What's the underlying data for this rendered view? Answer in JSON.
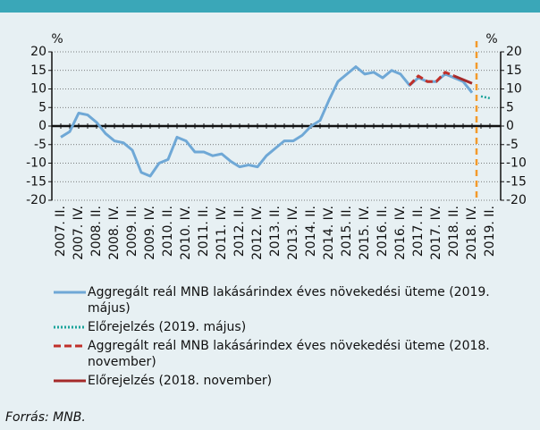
{
  "chart_data": {
    "type": "line",
    "y_unit": "%",
    "y2_unit": "%",
    "categories": [
      "2007. II.",
      null,
      "2007. IV.",
      null,
      "2008. II.",
      null,
      "2008. IV.",
      null,
      "2009. II.",
      null,
      "2009. IV.",
      null,
      "2010. II.",
      null,
      "2010. IV.",
      null,
      "2011. II.",
      null,
      "2011. IV.",
      null,
      "2012. II.",
      null,
      "2012. IV.",
      null,
      "2013. II.",
      null,
      "2013. IV.",
      null,
      "2014. II.",
      null,
      "2014. IV.",
      null,
      "2015. II.",
      null,
      "2015. IV.",
      null,
      "2016. II.",
      null,
      "2016. IV.",
      null,
      "2017. II.",
      null,
      "2017. IV.",
      null,
      "2018. II.",
      null,
      "2018. IV.",
      null,
      "2019. II."
    ],
    "series": [
      {
        "name": "Aggregált reál MNB lakásárindex éves növekedési üteme (2019. május)",
        "color": "#6fa8d6",
        "dash": "solid",
        "values": [
          -3,
          -1.5,
          3.5,
          3,
          1,
          -2,
          -4,
          -4.5,
          -6.5,
          -12.5,
          -13.5,
          -10,
          -9,
          -3,
          -4,
          -7,
          -7,
          -8,
          -7.5,
          -9.5,
          -11,
          -10.5,
          -11,
          -8,
          -6,
          -4,
          -4,
          -2.5,
          0,
          1.5,
          7,
          12,
          14,
          16,
          14,
          14.5,
          13,
          15,
          14,
          11,
          13,
          12,
          12,
          14,
          13,
          12,
          9,
          null,
          null
        ]
      },
      {
        "name": "Előrejelzés (2019. május)",
        "color": "#1aa39a",
        "dash": "dotted",
        "values": [
          null,
          null,
          null,
          null,
          null,
          null,
          null,
          null,
          null,
          null,
          null,
          null,
          null,
          null,
          null,
          null,
          null,
          null,
          null,
          null,
          null,
          null,
          null,
          null,
          null,
          null,
          null,
          null,
          null,
          null,
          null,
          null,
          null,
          null,
          null,
          null,
          null,
          null,
          null,
          null,
          null,
          null,
          null,
          null,
          null,
          null,
          null,
          8,
          7.5
        ]
      },
      {
        "name": "Aggregált reál MNB lakásárindex éves növekedési üteme (2018. november)",
        "color": "#c0302a",
        "dash": "dashed",
        "values": [
          null,
          null,
          null,
          null,
          null,
          null,
          null,
          null,
          null,
          null,
          null,
          null,
          null,
          null,
          null,
          null,
          null,
          null,
          null,
          null,
          null,
          null,
          null,
          null,
          null,
          null,
          null,
          null,
          null,
          null,
          null,
          null,
          null,
          null,
          null,
          null,
          null,
          null,
          null,
          11,
          13.5,
          12,
          12,
          14.5,
          13.5,
          null,
          null,
          null,
          null
        ]
      },
      {
        "name": "Előrejelzés (2018. november)",
        "color": "#a52a2a",
        "dash": "solid",
        "values": [
          null,
          null,
          null,
          null,
          null,
          null,
          null,
          null,
          null,
          null,
          null,
          null,
          null,
          null,
          null,
          null,
          null,
          null,
          null,
          null,
          null,
          null,
          null,
          null,
          null,
          null,
          null,
          null,
          null,
          null,
          null,
          null,
          null,
          null,
          null,
          null,
          null,
          null,
          null,
          null,
          null,
          null,
          null,
          null,
          13.5,
          12.5,
          11.5,
          null,
          null
        ]
      }
    ],
    "ylim": [
      -20,
      20
    ],
    "yticks": [
      -20,
      -15,
      -10,
      -5,
      0,
      5,
      10,
      15,
      20
    ],
    "y2lim": [
      -20,
      20
    ],
    "y2ticks": [
      -20,
      -15,
      -10,
      -5,
      0,
      5,
      10,
      15,
      20
    ],
    "grid": true,
    "source": "Forrás: MNB."
  }
}
